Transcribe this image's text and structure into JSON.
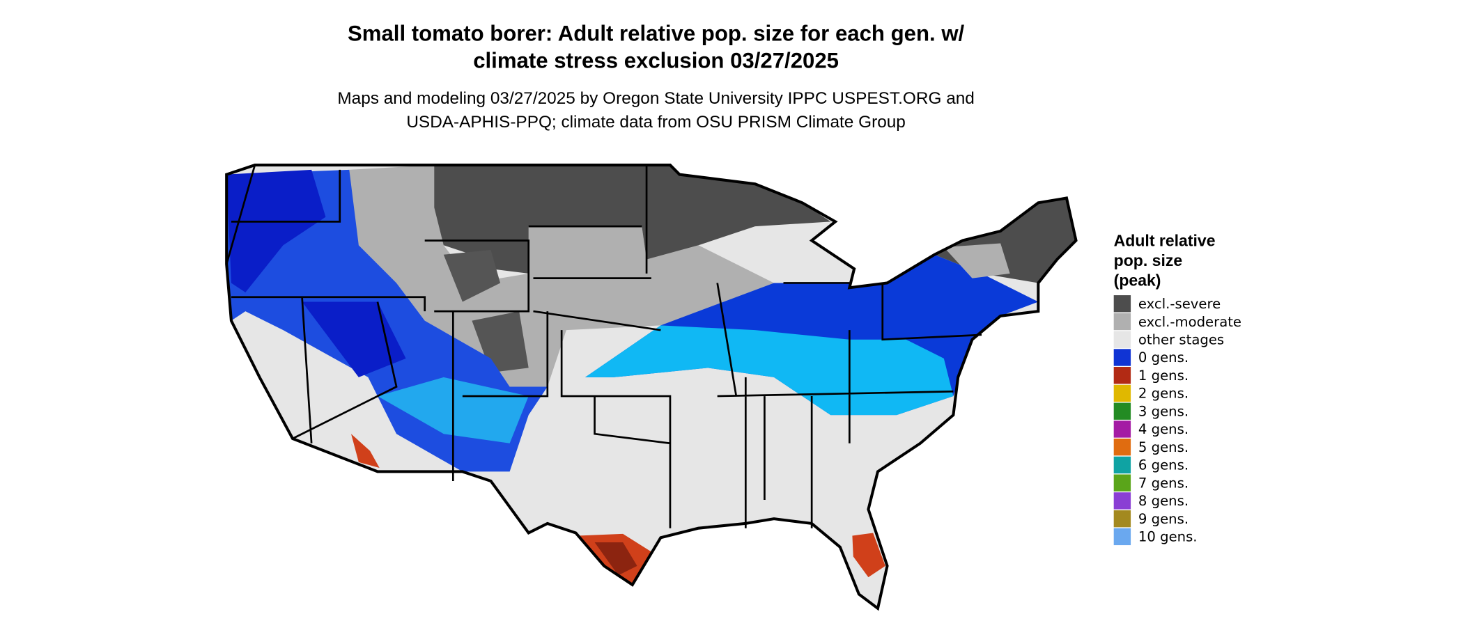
{
  "header": {
    "title_lines": [
      "Small tomato borer: Adult relative pop. size for each gen. w/",
      "climate stress exclusion 03/27/2025"
    ],
    "subtitle_lines": [
      "Maps and modeling 03/27/2025 by Oregon State University IPPC USPEST.ORG and",
      "USDA-APHIS-PPQ; climate data from OSU PRISM Climate Group"
    ]
  },
  "legend": {
    "title_lines": [
      "Adult relative",
      "pop. size",
      "(peak)"
    ],
    "items": [
      {
        "label": "excl.-severe",
        "color": "#4d4d4d"
      },
      {
        "label": "excl.-moderate",
        "color": "#b0b0b0"
      },
      {
        "label": "other stages",
        "color": "#e6e6e6"
      },
      {
        "label": "0 gens.",
        "color": "#1034d4"
      },
      {
        "label": "1 gens.",
        "color": "#b22a14"
      },
      {
        "label": "2 gens.",
        "color": "#e0b800"
      },
      {
        "label": "3 gens.",
        "color": "#238b23"
      },
      {
        "label": "4 gens.",
        "color": "#a41ba4"
      },
      {
        "label": "5 gens.",
        "color": "#e06c10"
      },
      {
        "label": "6 gens.",
        "color": "#0fa3a3"
      },
      {
        "label": "7 gens.",
        "color": "#5aa51a"
      },
      {
        "label": "8 gens.",
        "color": "#8a3fd4"
      },
      {
        "label": "9 gens.",
        "color": "#a3891f"
      },
      {
        "label": "10 gens.",
        "color": "#6aa8ef"
      }
    ]
  }
}
